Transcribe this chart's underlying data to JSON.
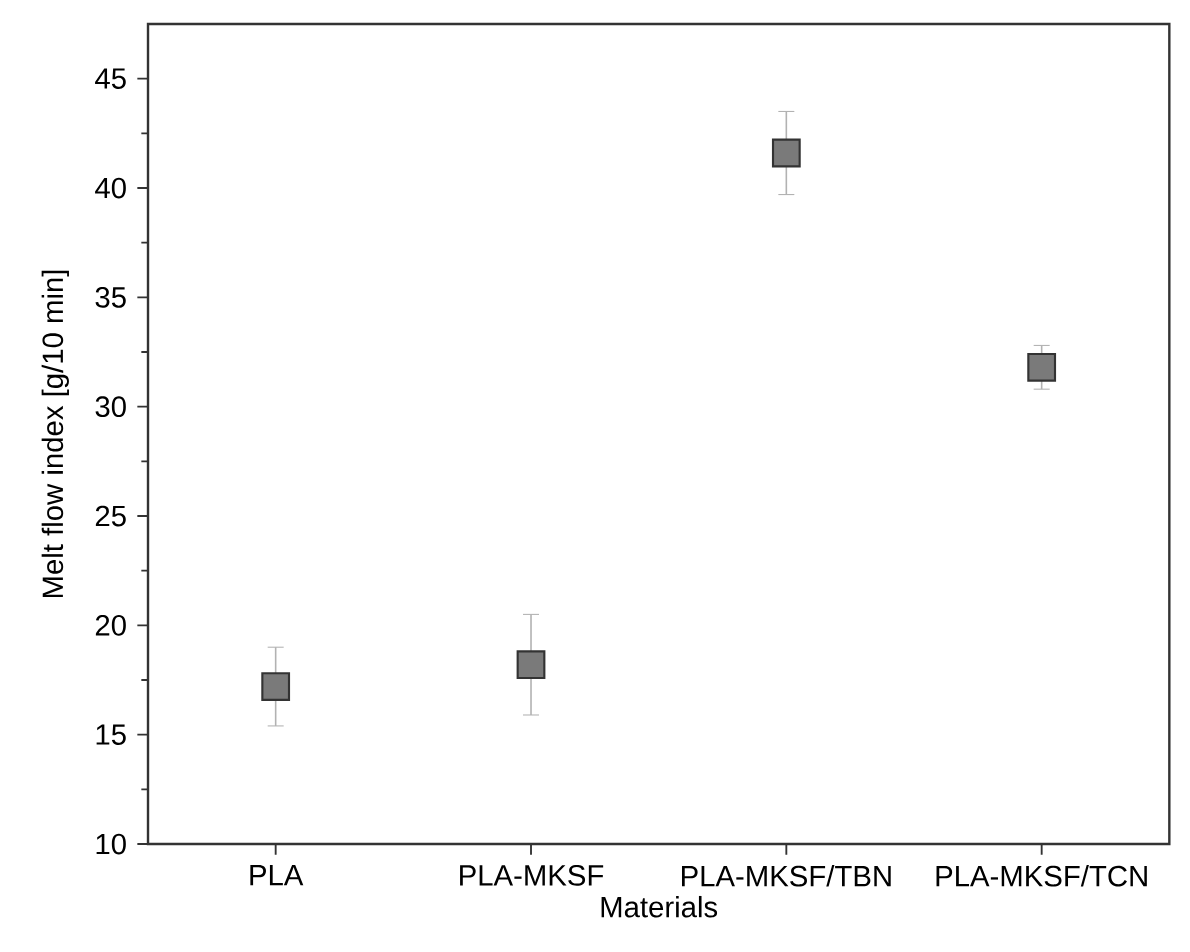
{
  "chart_data": {
    "type": "scatter",
    "xlabel": "Materials",
    "ylabel": "Melt flow index [g/10 min]",
    "categories": [
      "PLA",
      "PLA-MKSF",
      "PLA-MKSF/TBN",
      "PLA-MKSF/TCN"
    ],
    "values": [
      17.2,
      18.2,
      41.6,
      31.8
    ],
    "errors": [
      1.8,
      2.3,
      1.9,
      1.0
    ],
    "color": "#7a7a7a",
    "marker": "square",
    "ylim": [
      10,
      47.5
    ],
    "yticks": [
      10,
      15,
      20,
      25,
      30,
      35,
      40,
      45
    ]
  }
}
